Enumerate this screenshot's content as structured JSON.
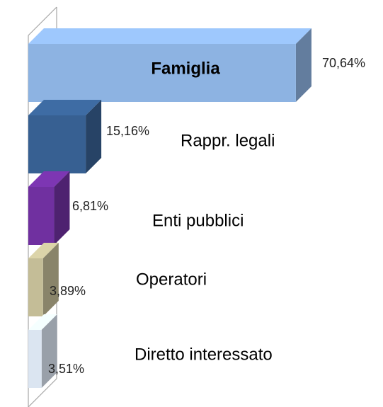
{
  "chart_data": {
    "type": "bar3d_horizontal",
    "categories": [
      "Famiglia",
      "Rappr. legali",
      "Enti pubblici",
      "Operatori",
      "Diretto interessato"
    ],
    "values": [
      70.64,
      15.16,
      6.81,
      3.89,
      3.51
    ],
    "value_labels": [
      "70,64%",
      "15,16%",
      "6,81%",
      "3,89%",
      "3,51%"
    ],
    "colors": [
      "#8db3e2",
      "#376092",
      "#7030a0",
      "#c4bd97",
      "#dbe5f1"
    ]
  }
}
